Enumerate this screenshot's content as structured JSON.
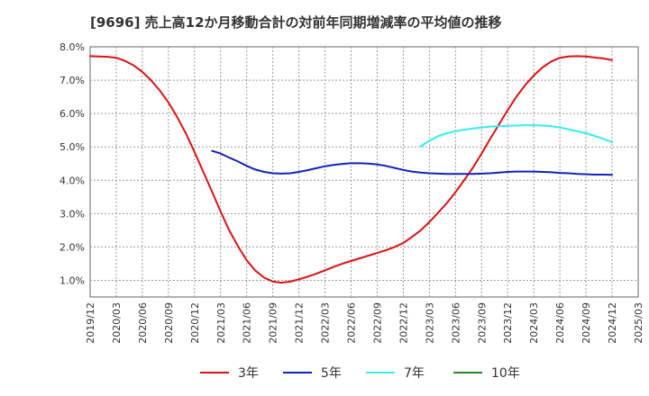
{
  "chart_data": {
    "type": "line",
    "title": "[9696]  売上高12か月移動合計の対前年同期増減率の平均値の推移",
    "xlabel": "",
    "ylabel": "",
    "ylim": [
      0.5,
      8.0
    ],
    "y_ticks": [
      1.0,
      2.0,
      3.0,
      4.0,
      5.0,
      6.0,
      7.0,
      8.0
    ],
    "y_tick_labels": [
      "1.0%",
      "2.0%",
      "3.0%",
      "4.0%",
      "5.0%",
      "6.0%",
      "7.0%",
      "8.0%"
    ],
    "x_tick_labels": [
      "2019/12",
      "2020/03",
      "2020/06",
      "2020/09",
      "2020/12",
      "2021/03",
      "2021/06",
      "2021/09",
      "2021/12",
      "2022/03",
      "2022/06",
      "2022/09",
      "2022/12",
      "2023/03",
      "2023/06",
      "2023/09",
      "2023/12",
      "2024/03",
      "2024/06",
      "2024/09",
      "2024/12",
      "2025/03"
    ],
    "grid": true,
    "legend_position": "bottom",
    "series": [
      {
        "name": "3年",
        "color": "#dd1111",
        "x": [
          0,
          0.33,
          0.67,
          1,
          1.33,
          1.67,
          2,
          2.33,
          2.67,
          3,
          3.33,
          3.67,
          4,
          4.33,
          4.67,
          5,
          5.33,
          5.67,
          6,
          6.33,
          6.67,
          7,
          7.33,
          7.67,
          8,
          8.33,
          8.67,
          9,
          9.33,
          9.67,
          10,
          10.33,
          10.67,
          11,
          11.33,
          11.67,
          12,
          12.33,
          12.67,
          13,
          13.33,
          13.67,
          14,
          14.33,
          14.67,
          15,
          15.33,
          15.67,
          16,
          16.33,
          16.67,
          17,
          17.33,
          17.67,
          18,
          18.33,
          18.67,
          19,
          19.33,
          19.67,
          20
        ],
        "values": [
          7.72,
          7.71,
          7.7,
          7.67,
          7.58,
          7.44,
          7.25,
          7.0,
          6.69,
          6.33,
          5.9,
          5.4,
          4.85,
          4.26,
          3.66,
          3.06,
          2.5,
          2.01,
          1.6,
          1.29,
          1.08,
          0.96,
          0.93,
          0.96,
          1.03,
          1.11,
          1.2,
          1.3,
          1.4,
          1.5,
          1.58,
          1.66,
          1.74,
          1.82,
          1.9,
          2.0,
          2.12,
          2.3,
          2.5,
          2.75,
          3.02,
          3.32,
          3.64,
          4.0,
          4.38,
          4.8,
          5.24,
          5.68,
          6.1,
          6.5,
          6.85,
          7.14,
          7.38,
          7.56,
          7.67,
          7.71,
          7.72,
          7.71,
          7.68,
          7.65,
          7.6
        ]
      },
      {
        "name": "5年",
        "color": "#1122bb",
        "x": [
          4.67,
          5,
          5.33,
          5.67,
          6,
          6.33,
          6.67,
          7,
          7.33,
          7.67,
          8,
          8.33,
          8.67,
          9,
          9.33,
          9.67,
          10,
          10.33,
          10.67,
          11,
          11.33,
          11.67,
          12,
          12.33,
          12.67,
          13,
          13.33,
          13.67,
          14,
          14.33,
          14.67,
          15,
          15.33,
          15.67,
          16,
          16.33,
          16.67,
          17,
          17.33,
          17.67,
          18,
          18.33,
          18.67,
          19,
          19.33,
          19.67,
          20
        ],
        "values": [
          4.88,
          4.8,
          4.68,
          4.56,
          4.43,
          4.32,
          4.25,
          4.21,
          4.2,
          4.21,
          4.25,
          4.3,
          4.36,
          4.42,
          4.46,
          4.49,
          4.51,
          4.51,
          4.5,
          4.47,
          4.43,
          4.37,
          4.31,
          4.26,
          4.23,
          4.21,
          4.2,
          4.19,
          4.19,
          4.19,
          4.19,
          4.2,
          4.21,
          4.23,
          4.25,
          4.26,
          4.26,
          4.26,
          4.25,
          4.24,
          4.22,
          4.21,
          4.19,
          4.18,
          4.17,
          4.17,
          4.16
        ]
      },
      {
        "name": "7年",
        "color": "#33eeee",
        "x": [
          12.67,
          13,
          13.33,
          13.67,
          14,
          14.33,
          14.67,
          15,
          15.33,
          15.67,
          16,
          16.33,
          16.67,
          17,
          17.33,
          17.67,
          18,
          18.33,
          18.67,
          19,
          19.33,
          19.67,
          20
        ],
        "values": [
          5.02,
          5.18,
          5.32,
          5.41,
          5.47,
          5.51,
          5.55,
          5.58,
          5.61,
          5.62,
          5.63,
          5.64,
          5.65,
          5.65,
          5.64,
          5.62,
          5.58,
          5.53,
          5.47,
          5.41,
          5.33,
          5.24,
          5.14
        ]
      },
      {
        "name": "10年",
        "color": "#228822",
        "x": [],
        "values": []
      }
    ]
  }
}
